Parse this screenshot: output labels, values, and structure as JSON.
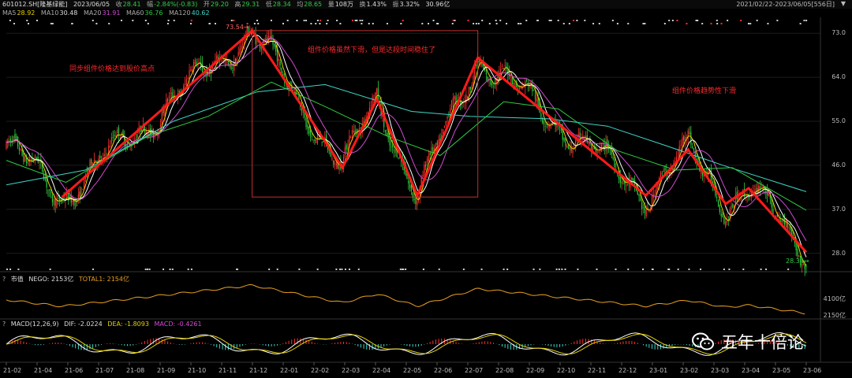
{
  "header": {
    "code": "601012.SH[隆基绿能]",
    "date": "2023/06/05",
    "close_label": "收",
    "close": "28.41",
    "change_label": "幅",
    "change": "-2.84%(-0.83)",
    "open_label": "开",
    "open": "29.20",
    "high_label": "高",
    "high": "29.31",
    "low_label": "低",
    "low": "28.34",
    "avg_label": "均",
    "avg": "28.65",
    "vol_label": "量",
    "vol": "108万",
    "turnover_label": "换",
    "turnover": "1.43%",
    "amp_label": "振",
    "amp": "3.32%",
    "amount": "30.96亿",
    "range": "2021/02/22-2023/06/05[556日]",
    "range_arrow": "▼"
  },
  "ma": {
    "ma5_label": "MA5",
    "ma5": "28.92",
    "ma10_label": "MA10",
    "ma10": "30.48",
    "ma20_label": "MA20",
    "ma20": "31.91",
    "ma60_label": "MA60",
    "ma60": "36.76",
    "ma120_label": "MA120",
    "ma120": "40.62"
  },
  "colors": {
    "up": "#ff3030",
    "down": "#2ecc40",
    "ma5": "#e6d200",
    "ma10": "#ffffff",
    "ma20": "#d24ad2",
    "ma60": "#2ecc40",
    "ma120": "#3fd6c8",
    "trend": "#ff1a1a"
  },
  "chart_data": [
    {
      "type": "line",
      "subtype": "candlestick",
      "title": "601012.SH[隆基绿能]",
      "yticks": [
        "73.0",
        "64.0",
        "55.0",
        "46.0",
        "37.0",
        "28.0"
      ],
      "ylim": [
        26.0,
        74.0
      ],
      "xticks": [
        "21-02",
        "21-04",
        "21-06",
        "21-07",
        "21-08",
        "21-09",
        "21-10",
        "21-11",
        "21-12",
        "22-01",
        "22-02",
        "22-03",
        "22-04",
        "22-05",
        "22-06",
        "22-07",
        "22-08",
        "22-09",
        "22-10",
        "22-11",
        "22-12",
        "23-01",
        "23-02",
        "23-03",
        "23-04",
        "23-05",
        "23-06"
      ],
      "max_label": "73.54",
      "min_label": "28.34",
      "trend_points": [
        {
          "x": "2021-04-21",
          "y": 39.5
        },
        {
          "x": "2021-11-05",
          "y": 73.54
        },
        {
          "x": "2022-02-07",
          "y": 45.5
        },
        {
          "x": "2022-03-15",
          "y": 59.5
        },
        {
          "x": "2022-04-26",
          "y": 39.8
        },
        {
          "x": "2022-06-28",
          "y": 68.0
        },
        {
          "x": "2022-12-20",
          "y": 39.8
        },
        {
          "x": "2023-02-02",
          "y": 49.2
        },
        {
          "x": "2023-03-13",
          "y": 38.1
        },
        {
          "x": "2023-04-06",
          "y": 41.3
        },
        {
          "x": "2023-06-05",
          "y": 28.2
        }
      ],
      "ma_series": [
        {
          "name": "MA120",
          "values": [
            {
              "x": "2021-02-22",
              "y": 42.0
            },
            {
              "x": "2021-05-15",
              "y": 45.0
            },
            {
              "x": "2021-08-15",
              "y": 55.0
            },
            {
              "x": "2021-11-10",
              "y": 61.0
            },
            {
              "x": "2022-01-20",
              "y": 62.5
            },
            {
              "x": "2022-04-20",
              "y": 57.0
            },
            {
              "x": "2022-06-20",
              "y": 56.0
            },
            {
              "x": "2022-09-10",
              "y": 55.5
            },
            {
              "x": "2022-11-10",
              "y": 54.0
            },
            {
              "x": "2023-01-10",
              "y": 50.0
            },
            {
              "x": "2023-03-10",
              "y": 46.0
            },
            {
              "x": "2023-06-05",
              "y": 40.6
            }
          ]
        },
        {
          "name": "MA60",
          "values": [
            {
              "x": "2021-02-22",
              "y": 47.0
            },
            {
              "x": "2021-04-25",
              "y": 42.5
            },
            {
              "x": "2021-07-20",
              "y": 52.0
            },
            {
              "x": "2021-09-20",
              "y": 56.0
            },
            {
              "x": "2021-11-25",
              "y": 63.0
            },
            {
              "x": "2022-01-20",
              "y": 58.0
            },
            {
              "x": "2022-03-25",
              "y": 52.0
            },
            {
              "x": "2022-05-20",
              "y": 48.0
            },
            {
              "x": "2022-07-25",
              "y": 59.0
            },
            {
              "x": "2022-09-20",
              "y": 57.5
            },
            {
              "x": "2022-11-20",
              "y": 49.0
            },
            {
              "x": "2023-01-20",
              "y": 45.0
            },
            {
              "x": "2023-03-20",
              "y": 45.5
            },
            {
              "x": "2023-06-05",
              "y": 36.8
            }
          ]
        }
      ],
      "annotations": [
        "同步组件价格达到股价高点",
        "组件价格虽然下滑，但是达段时间稳住了",
        "组件价格趋势性下滑"
      ]
    },
    {
      "type": "line",
      "title": "市值",
      "series_labels": [
        "NEGO: 2153亿",
        "TOTAL1: 2154亿"
      ],
      "yticks": [
        "4100亿",
        "2150亿"
      ]
    },
    {
      "type": "bar",
      "title": "MACD(12,26,9)",
      "series_labels": [
        "DIF: -2.0224",
        "DEA: -1.8093",
        "MACD: -0.4261"
      ]
    }
  ],
  "sub_panels": {
    "mv_prefix": "?",
    "macd_prefix": "?"
  },
  "watermark": {
    "text": "五年十倍论"
  }
}
